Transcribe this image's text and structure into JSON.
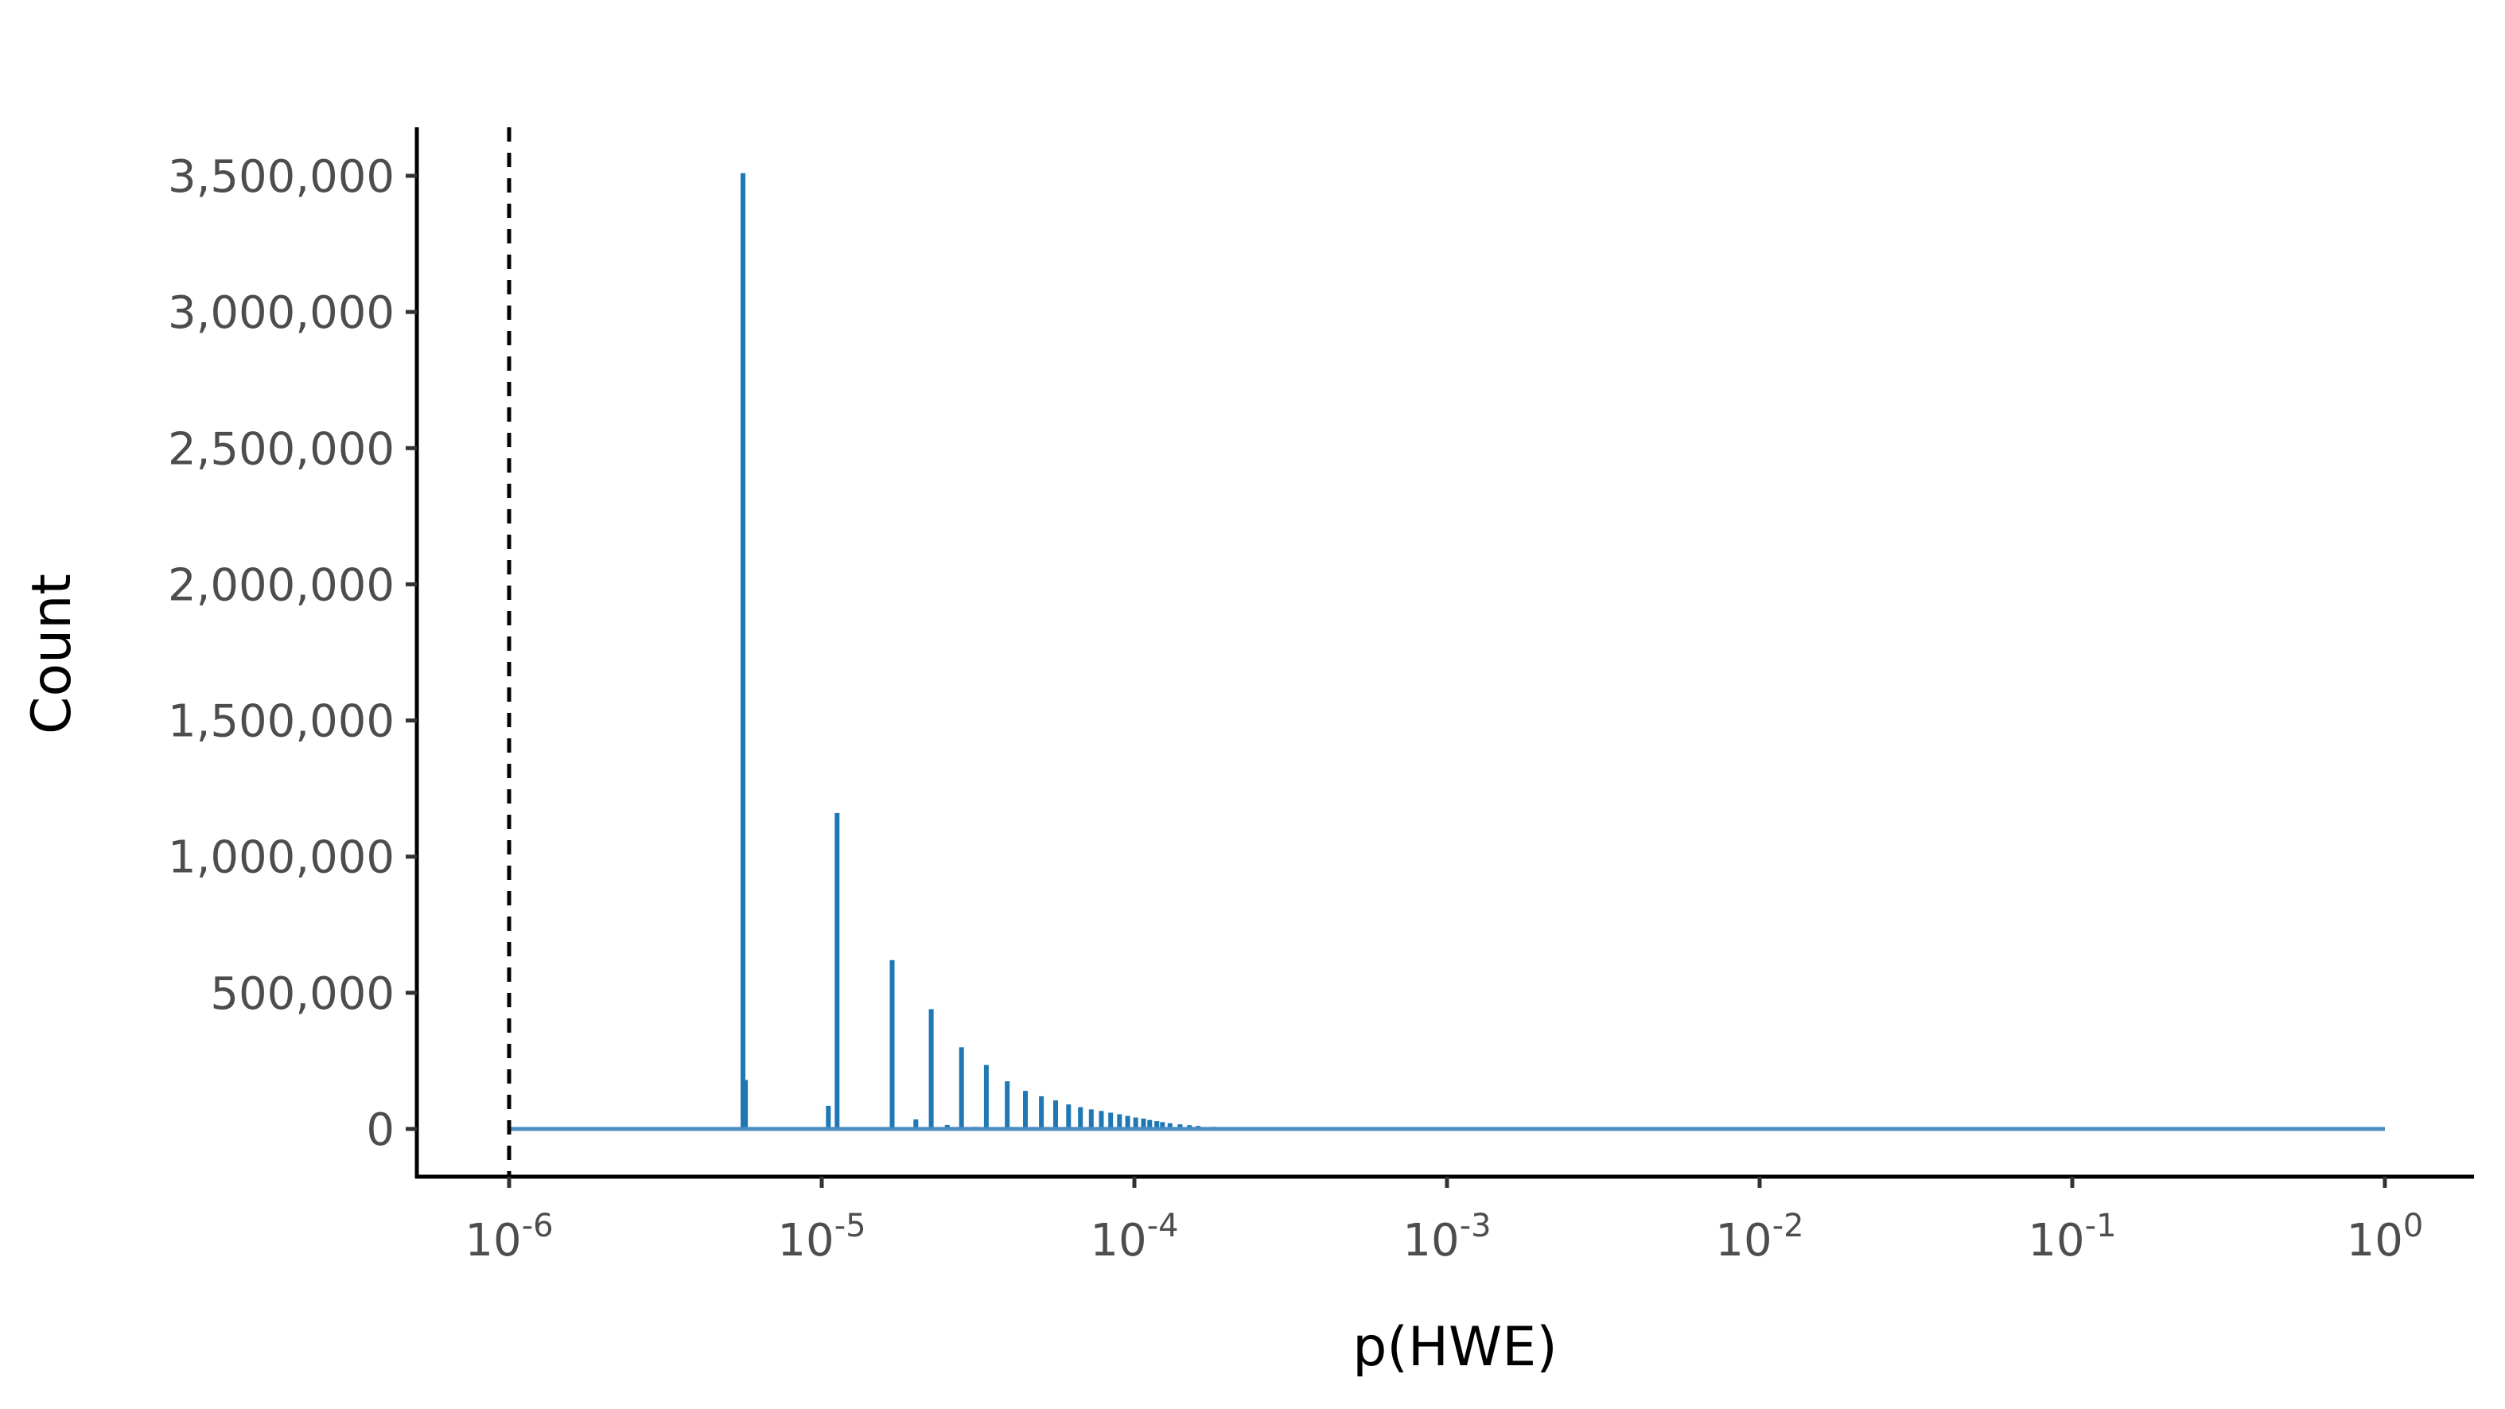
{
  "chart_data": {
    "type": "bar",
    "title": "",
    "xlabel": "p(HWE)",
    "ylabel": "Count",
    "x_scale": "log10",
    "xlim": [
      1e-06,
      1
    ],
    "ylim": [
      0,
      3500000
    ],
    "grid": false,
    "legend": "none",
    "bar_color": "#1f77b4",
    "baseline_color": "#4a8cc2",
    "threshold_line": {
      "x": 1e-06,
      "style": "dashed",
      "color": "#000000"
    },
    "x_ticks": [
      {
        "base": "10",
        "exp": "-6",
        "value": 1e-06
      },
      {
        "base": "10",
        "exp": "-5",
        "value": 1e-05
      },
      {
        "base": "10",
        "exp": "-4",
        "value": 0.0001
      },
      {
        "base": "10",
        "exp": "-3",
        "value": 0.001
      },
      {
        "base": "10",
        "exp": "-2",
        "value": 0.01
      },
      {
        "base": "10",
        "exp": "-1",
        "value": 0.1
      },
      {
        "base": "10",
        "exp": "0",
        "value": 1
      }
    ],
    "y_ticks": [
      {
        "label": "0",
        "value": 0
      },
      {
        "label": "500,000",
        "value": 500000
      },
      {
        "label": "1,000,000",
        "value": 1000000
      },
      {
        "label": "1,500,000",
        "value": 1500000
      },
      {
        "label": "2,000,000",
        "value": 2000000
      },
      {
        "label": "2,500,000",
        "value": 2500000
      },
      {
        "label": "3,000,000",
        "value": 3000000
      },
      {
        "label": "3,500,000",
        "value": 3500000
      }
    ],
    "x": [
      5.6e-06,
      5.7e-06,
      1.05e-05,
      1.12e-05,
      1.68e-05,
      2e-05,
      2.24e-05,
      2.52e-05,
      2.8e-05,
      3.1e-05,
      3.36e-05,
      3.67e-05,
      3.92e-05,
      4.48e-05,
      5.04e-05,
      5.6e-05,
      6.16e-05,
      6.72e-05,
      7.28e-05,
      7.84e-05,
      8.4e-05,
      8.96e-05,
      9.52e-05,
      0.000101,
      0.000107,
      0.000112,
      0.000118,
      0.000123,
      0.00013,
      0.00014,
      0.00015,
      0.00016,
      0.00018,
      0.0002,
      0.00025,
      0.0003,
      0.0005,
      0.001,
      0.003,
      0.01,
      0.05,
      0.2,
      0.5,
      0.55,
      0.6
    ],
    "values": [
      3510000,
      180000,
      85000,
      1160000,
      620000,
      35000,
      440000,
      15000,
      300000,
      8000,
      235000,
      5000,
      175000,
      140000,
      120000,
      105000,
      90000,
      80000,
      72000,
      66000,
      60000,
      54000,
      48000,
      42000,
      38000,
      33000,
      29000,
      25000,
      21000,
      17000,
      14000,
      11000,
      8000,
      6000,
      4000,
      3000,
      2000,
      1200,
      800,
      600,
      500,
      500,
      3000,
      2000,
      1500
    ]
  }
}
